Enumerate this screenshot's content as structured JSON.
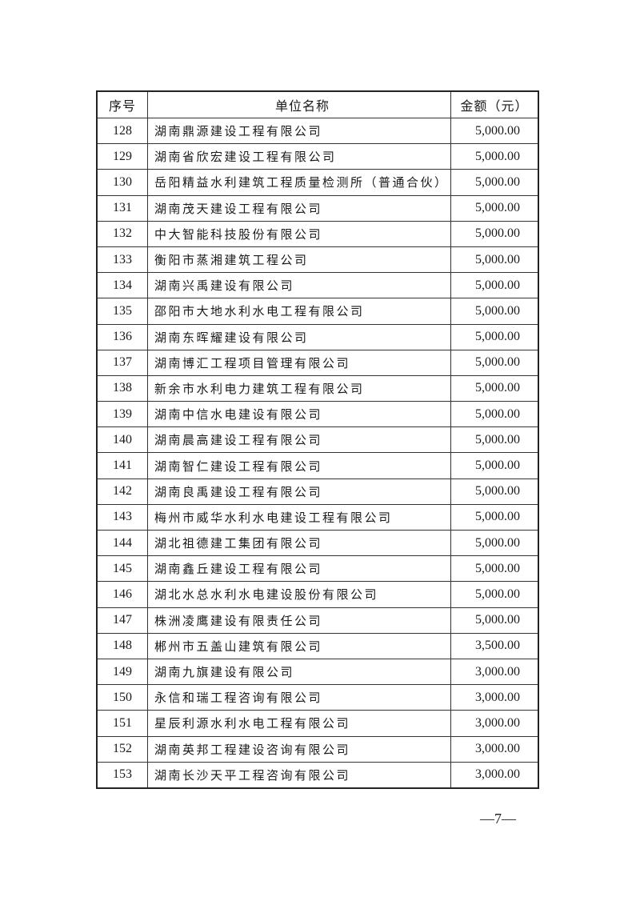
{
  "table": {
    "headers": {
      "no": "序号",
      "name": "单位名称",
      "amount": "金额（元）"
    },
    "rows": [
      {
        "no": "128",
        "name": "湖南鼎源建设工程有限公司",
        "amount": "5,000.00"
      },
      {
        "no": "129",
        "name": "湖南省欣宏建设工程有限公司",
        "amount": "5,000.00"
      },
      {
        "no": "130",
        "name": "岳阳精益水利建筑工程质量检测所（普通合伙）",
        "amount": "5,000.00"
      },
      {
        "no": "131",
        "name": "湖南茂天建设工程有限公司",
        "amount": "5,000.00"
      },
      {
        "no": "132",
        "name": "中大智能科技股份有限公司",
        "amount": "5,000.00"
      },
      {
        "no": "133",
        "name": "衡阳市蒸湘建筑工程公司",
        "amount": "5,000.00"
      },
      {
        "no": "134",
        "name": "湖南兴禹建设有限公司",
        "amount": "5,000.00"
      },
      {
        "no": "135",
        "name": "邵阳市大地水利水电工程有限公司",
        "amount": "5,000.00"
      },
      {
        "no": "136",
        "name": "湖南东晖耀建设有限公司",
        "amount": "5,000.00"
      },
      {
        "no": "137",
        "name": "湖南博汇工程项目管理有限公司",
        "amount": "5,000.00"
      },
      {
        "no": "138",
        "name": "新余市水利电力建筑工程有限公司",
        "amount": "5,000.00"
      },
      {
        "no": "139",
        "name": "湖南中信水电建设有限公司",
        "amount": "5,000.00"
      },
      {
        "no": "140",
        "name": "湖南晨高建设工程有限公司",
        "amount": "5,000.00"
      },
      {
        "no": "141",
        "name": "湖南智仁建设工程有限公司",
        "amount": "5,000.00"
      },
      {
        "no": "142",
        "name": "湖南良禹建设工程有限公司",
        "amount": "5,000.00"
      },
      {
        "no": "143",
        "name": "梅州市威华水利水电建设工程有限公司",
        "amount": "5,000.00"
      },
      {
        "no": "144",
        "name": "湖北祖德建工集团有限公司",
        "amount": "5,000.00"
      },
      {
        "no": "145",
        "name": "湖南鑫丘建设工程有限公司",
        "amount": "5,000.00"
      },
      {
        "no": "146",
        "name": "湖北水总水利水电建设股份有限公司",
        "amount": "5,000.00"
      },
      {
        "no": "147",
        "name": "株洲凌鹰建设有限责任公司",
        "amount": "5,000.00"
      },
      {
        "no": "148",
        "name": "郴州市五盖山建筑有限公司",
        "amount": "3,500.00"
      },
      {
        "no": "149",
        "name": "湖南九旗建设有限公司",
        "amount": "3,000.00"
      },
      {
        "no": "150",
        "name": "永信和瑞工程咨询有限公司",
        "amount": "3,000.00"
      },
      {
        "no": "151",
        "name": "星辰利源水利水电工程有限公司",
        "amount": "3,000.00"
      },
      {
        "no": "152",
        "name": "湖南英邦工程建设咨询有限公司",
        "amount": "3,000.00"
      },
      {
        "no": "153",
        "name": "湖南长沙天平工程咨询有限公司",
        "amount": "3,000.00"
      }
    ]
  },
  "page_number": "—7—"
}
